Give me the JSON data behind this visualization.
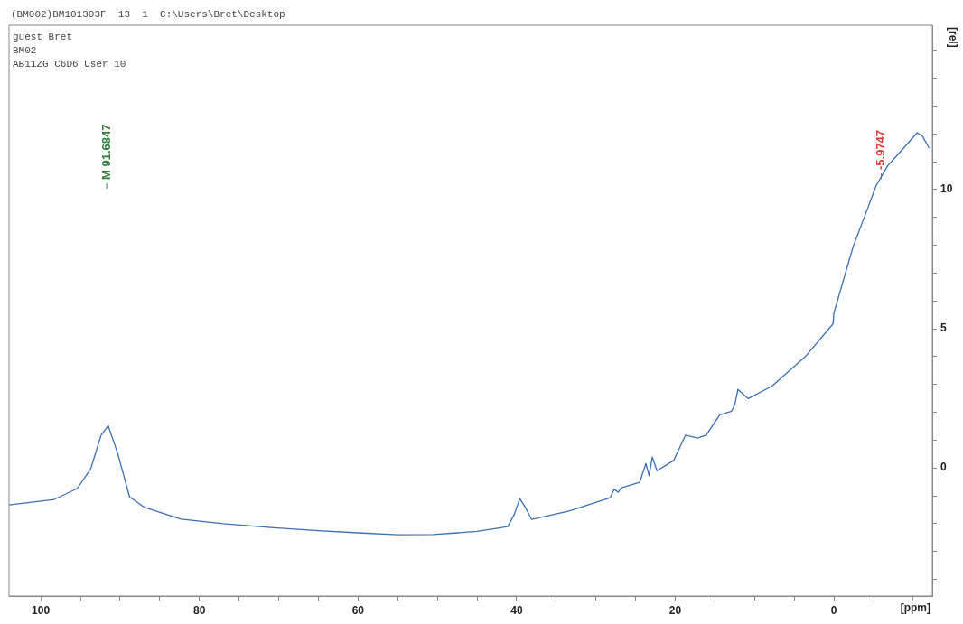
{
  "chart_data": {
    "type": "line",
    "title": "(BM002)BM101303F  13  1  C:\\Users\\Bret\\Desktop",
    "xlabel": "[ppm]",
    "ylabel": "[rel]",
    "annotations": [
      "guest Bret",
      "BM02",
      "AB11ZG C6D6 User 10",
      {
        "text": "M 91.6847",
        "x": 91.6847
      },
      {
        "text": "-5.9747",
        "x": -5.9747,
        "y": 10.45
      }
    ],
    "series": [
      {
        "color": "#3a6fb5",
        "x": [
          104,
          98.3,
          95.4,
          93.7,
          92.4,
          91.5,
          90.3,
          88.8,
          86.9,
          82.3,
          77,
          71,
          65,
          60,
          55,
          50.5,
          45,
          42,
          41.1,
          40.3,
          39.6,
          38.9,
          38.1,
          33.4,
          28.2,
          27.7,
          27.2,
          26.8,
          24.5,
          23.7,
          23.3,
          22.9,
          22.3,
          20.2,
          18.7,
          17.2,
          16.1,
          14.4,
          12.9,
          12.5,
          12.1,
          10.8,
          7.8,
          3.5,
          0.1,
          0,
          -2.4,
          -3.9,
          -5.35,
          -6.8,
          -8.1,
          -10.5,
          -11.2,
          -12
        ],
        "values": [
          -1.33,
          -1.13,
          -0.74,
          -0.03,
          1.17,
          1.52,
          0.52,
          -1.04,
          -1.42,
          -1.84,
          -2.0,
          -2.14,
          -2.25,
          -2.33,
          -2.4,
          -2.39,
          -2.28,
          -2.15,
          -2.1,
          -1.67,
          -1.1,
          -1.42,
          -1.85,
          -1.55,
          -1.07,
          -0.76,
          -0.87,
          -0.71,
          -0.52,
          0.16,
          -0.28,
          0.39,
          -0.1,
          0.27,
          1.18,
          1.07,
          1.18,
          1.91,
          2.04,
          2.27,
          2.82,
          2.49,
          2.94,
          4.03,
          5.18,
          5.57,
          7.93,
          9.06,
          10.16,
          10.86,
          11.27,
          12.04,
          11.9,
          11.49
        ]
      }
    ],
    "xlim": [
      104,
      -12.4
    ],
    "xticks": [
      100,
      {
        "value": 95,
        "label": null
      },
      {
        "value": 90,
        "label": null
      },
      {
        "value": 85,
        "label": null
      },
      80,
      {
        "value": 75,
        "label": null
      },
      {
        "value": 70,
        "label": null
      },
      {
        "value": 65,
        "label": null
      },
      60,
      {
        "value": 55,
        "label": null
      },
      {
        "value": 50,
        "label": null
      },
      {
        "value": 45,
        "label": null
      },
      40,
      {
        "value": 35,
        "label": null
      },
      {
        "value": 30,
        "label": null
      },
      {
        "value": 25,
        "label": null
      },
      20,
      {
        "value": 15,
        "label": null
      },
      {
        "value": 10,
        "label": null
      },
      {
        "value": 5,
        "label": null
      },
      0,
      {
        "value": -5,
        "label": null
      },
      {
        "value": -10,
        "label": null
      }
    ],
    "ylim": [
      -4.6,
      15.9
    ],
    "yticks": [
      {
        "value": -4,
        "label": null
      },
      {
        "value": -3,
        "label": null
      },
      {
        "value": -2,
        "label": null
      },
      {
        "value": -1,
        "label": null
      },
      0,
      {
        "value": 1,
        "label": null
      },
      {
        "value": 2,
        "label": null
      },
      {
        "value": 3,
        "label": null
      },
      {
        "value": 4,
        "label": null
      },
      5,
      {
        "value": 6,
        "label": null
      },
      {
        "value": 7,
        "label": null
      },
      {
        "value": 8,
        "label": null
      },
      {
        "value": 9,
        "label": null
      },
      10,
      {
        "value": 11,
        "label": null
      },
      {
        "value": 12,
        "label": null
      },
      {
        "value": 13,
        "label": null
      },
      {
        "value": 14,
        "label": null
      },
      {
        "value": 15,
        "label": null
      }
    ],
    "marker": "none",
    "line_style": "solid",
    "grid": false,
    "legend": false
  }
}
